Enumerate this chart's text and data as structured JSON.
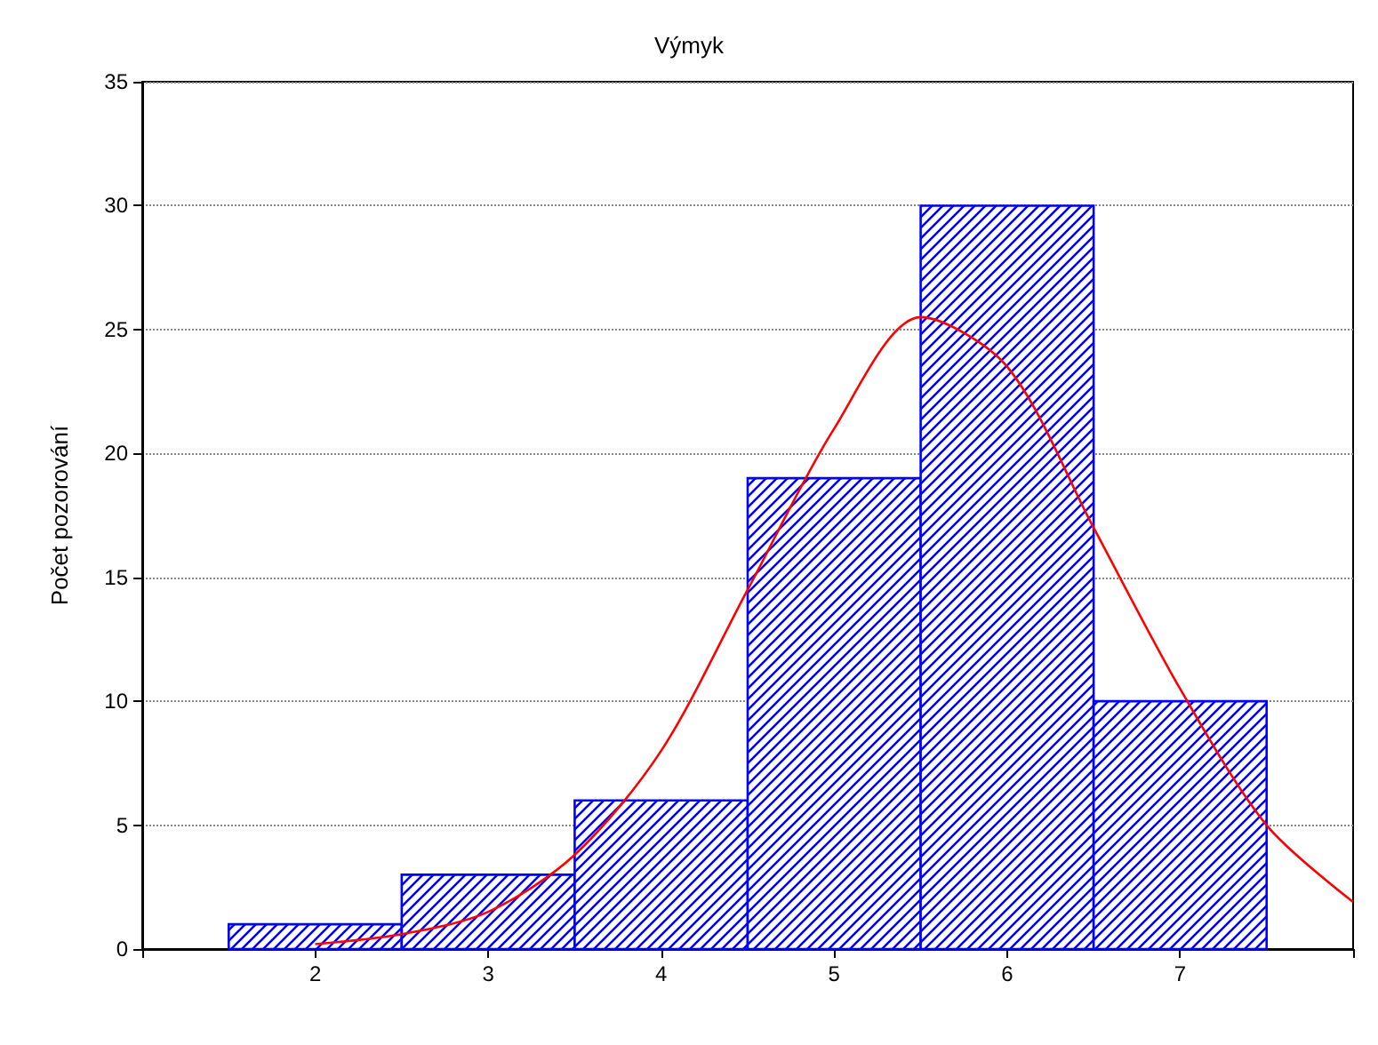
{
  "chart_data": {
    "type": "histogram",
    "title": "Výmyk",
    "ylabel": "Počet pozorování",
    "bins": [
      1.5,
      2.5,
      3.5,
      4.5,
      5.5,
      6.5,
      7.5
    ],
    "values": [
      1,
      3,
      6,
      19,
      30,
      10
    ],
    "color": "#0000ff",
    "series": [
      {
        "type": "line",
        "color": "#ff0000",
        "x": [
          2,
          2.5,
          3,
          3.5,
          4,
          4.5,
          5,
          5.5,
          6,
          6.5,
          7,
          7.5,
          8
        ],
        "values": [
          0.2,
          0.6,
          1.5,
          3.8,
          8,
          14.5,
          21,
          25.5,
          23.5,
          17,
          10.5,
          5,
          1.9
        ]
      }
    ],
    "xlim": [
      1,
      8
    ],
    "xticks": [
      {
        "value": 1,
        "label": null
      },
      2,
      3,
      4,
      5,
      6,
      7,
      {
        "value": 8,
        "label": null
      }
    ],
    "ylim": [
      0,
      35
    ],
    "yticks": [
      0,
      5,
      10,
      15,
      20,
      25,
      30,
      35
    ],
    "grid": "y",
    "marker": "none",
    "line_style": "solid"
  }
}
